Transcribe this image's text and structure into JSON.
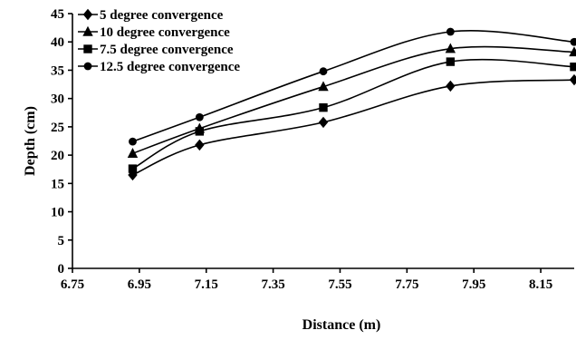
{
  "chart_data": {
    "type": "line",
    "title": "",
    "xlabel": "Distance (m)",
    "ylabel": "Depth (cm)",
    "xlim": [
      6.75,
      8.25
    ],
    "ylim": [
      0,
      45
    ],
    "x_ticks": [
      6.75,
      6.95,
      7.15,
      7.35,
      7.55,
      7.75,
      7.95,
      8.15
    ],
    "x_tick_labels": [
      "6.75",
      "6.95",
      "7.15",
      "7.35",
      "7.55",
      "7.75",
      "7.95",
      "8.15"
    ],
    "y_ticks": [
      0,
      5,
      10,
      15,
      20,
      25,
      30,
      35,
      40,
      45
    ],
    "y_tick_labels": [
      "0",
      "5",
      "10",
      "15",
      "20",
      "25",
      "30",
      "35",
      "40",
      "45"
    ],
    "grid": false,
    "legend_position": "top-left",
    "x": [
      6.93,
      7.13,
      7.5,
      7.88,
      8.25
    ],
    "series": [
      {
        "name": "5 degree convergence",
        "marker": "diamond",
        "values": [
          16.5,
          21.8,
          25.8,
          32.2,
          33.3
        ]
      },
      {
        "name": "10 degree convergence",
        "marker": "triangle",
        "values": [
          20.3,
          24.7,
          32.1,
          38.8,
          38.2
        ]
      },
      {
        "name": "7.5 degree convergence",
        "marker": "square",
        "values": [
          17.6,
          24.2,
          28.4,
          36.5,
          35.6
        ]
      },
      {
        "name": "12.5 degree convergence",
        "marker": "circle",
        "values": [
          22.4,
          26.7,
          34.8,
          41.8,
          40.0
        ]
      }
    ]
  }
}
